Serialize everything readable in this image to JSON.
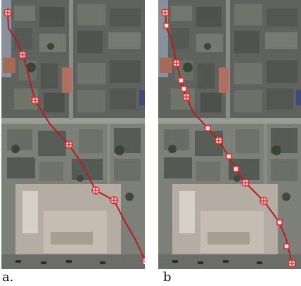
{
  "figure": {
    "panels": [
      {
        "id": "a",
        "caption": "a.",
        "markers": 8,
        "marker_types": [
          "circle-cross"
        ]
      },
      {
        "id": "b",
        "caption": "b",
        "markers": 17,
        "marker_types": [
          "circle-cross",
          "square"
        ]
      }
    ],
    "colors": {
      "route": "#b41e1e",
      "marker_stroke": "#e82828",
      "marker_fill": "#f3e6e6"
    }
  }
}
